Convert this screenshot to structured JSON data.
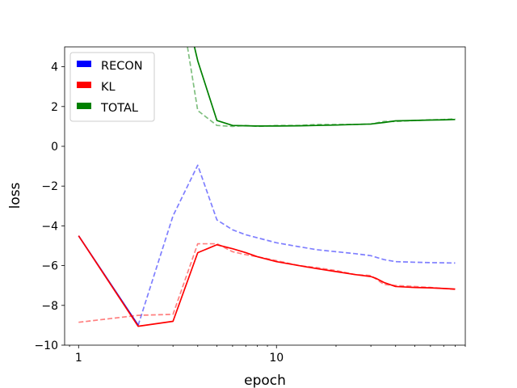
{
  "chart_data": {
    "type": "line",
    "title": "",
    "xlabel": "epoch",
    "ylabel": "loss",
    "xscale": "log",
    "xlim": [
      0.85,
      90
    ],
    "ylim": [
      -10,
      5
    ],
    "xticks": [
      {
        "value": 1,
        "label": "1"
      },
      {
        "value": 10,
        "label": "10"
      }
    ],
    "yticks": [
      {
        "value": -10,
        "label": "−10"
      },
      {
        "value": -8,
        "label": "−8"
      },
      {
        "value": -6,
        "label": "−6"
      },
      {
        "value": -4,
        "label": "−4"
      },
      {
        "value": -2,
        "label": "−2"
      },
      {
        "value": 0,
        "label": "0"
      },
      {
        "value": 2,
        "label": "2"
      },
      {
        "value": 4,
        "label": "4"
      }
    ],
    "grid": false,
    "legend_position": "top-left",
    "legend": [
      {
        "label": "RECON",
        "color": "#0000ff"
      },
      {
        "label": "KL",
        "color": "#ff0000"
      },
      {
        "label": "TOTAL",
        "color": "#008000"
      }
    ],
    "series": [
      {
        "color": "#0000ff",
        "style": "solid",
        "x": [
          1,
          2
        ],
        "y": [
          -4.5,
          -9.0
        ]
      },
      {
        "color": "#0000ff",
        "style": "dashed",
        "opacity": 0.5,
        "x": [
          2,
          3,
          4,
          5,
          6,
          7,
          8,
          10,
          13,
          16,
          20,
          25,
          30,
          35,
          40,
          50,
          60,
          70,
          80
        ],
        "y": [
          -9.0,
          -3.5,
          -0.95,
          -3.7,
          -4.2,
          -4.45,
          -4.6,
          -4.85,
          -5.05,
          -5.2,
          -5.3,
          -5.4,
          -5.5,
          -5.7,
          -5.8,
          -5.83,
          -5.85,
          -5.86,
          -5.87
        ]
      },
      {
        "color": "#ff0000",
        "style": "solid",
        "x": [
          1,
          2,
          3,
          4,
          5,
          6,
          7,
          8,
          10,
          13,
          16,
          20,
          25,
          30,
          32,
          35,
          40,
          50,
          60,
          70,
          80
        ],
        "y": [
          -4.5,
          -9.05,
          -8.8,
          -5.35,
          -4.95,
          -5.15,
          -5.35,
          -5.55,
          -5.8,
          -6.0,
          -6.15,
          -6.3,
          -6.45,
          -6.55,
          -6.65,
          -6.85,
          -7.05,
          -7.1,
          -7.12,
          -7.15,
          -7.18
        ]
      },
      {
        "color": "#ff0000",
        "style": "dashed",
        "opacity": 0.5,
        "x": [
          1,
          2,
          3,
          4,
          5,
          6,
          7,
          8,
          10,
          13,
          16,
          20,
          25,
          30,
          35,
          40,
          50,
          60,
          70,
          80
        ],
        "y": [
          -8.85,
          -8.5,
          -8.45,
          -4.9,
          -4.9,
          -5.3,
          -5.45,
          -5.55,
          -5.75,
          -6.0,
          -6.1,
          -6.25,
          -6.45,
          -6.5,
          -6.95,
          -7.0,
          -7.05,
          -7.1,
          -7.15,
          -7.2
        ]
      },
      {
        "color": "#008000",
        "style": "solid",
        "x": [
          3.85,
          4,
          5,
          6,
          7,
          8,
          10,
          13,
          16,
          20,
          25,
          30,
          35,
          40,
          50,
          60,
          70,
          80
        ],
        "y": [
          5.0,
          4.3,
          1.3,
          1.05,
          1.03,
          1.02,
          1.02,
          1.03,
          1.05,
          1.07,
          1.1,
          1.12,
          1.2,
          1.28,
          1.3,
          1.32,
          1.33,
          1.35
        ]
      },
      {
        "color": "#008000",
        "style": "dashed",
        "opacity": 0.5,
        "x": [
          3.55,
          4,
          5,
          6,
          7,
          8,
          10,
          13,
          16,
          20,
          25,
          30,
          35,
          40,
          50,
          60,
          70,
          80
        ],
        "y": [
          5.0,
          1.8,
          1.05,
          1.0,
          1.05,
          1.0,
          1.05,
          1.05,
          1.1,
          1.1,
          1.1,
          1.12,
          1.25,
          1.25,
          1.3,
          1.33,
          1.35,
          1.38
        ]
      }
    ]
  }
}
